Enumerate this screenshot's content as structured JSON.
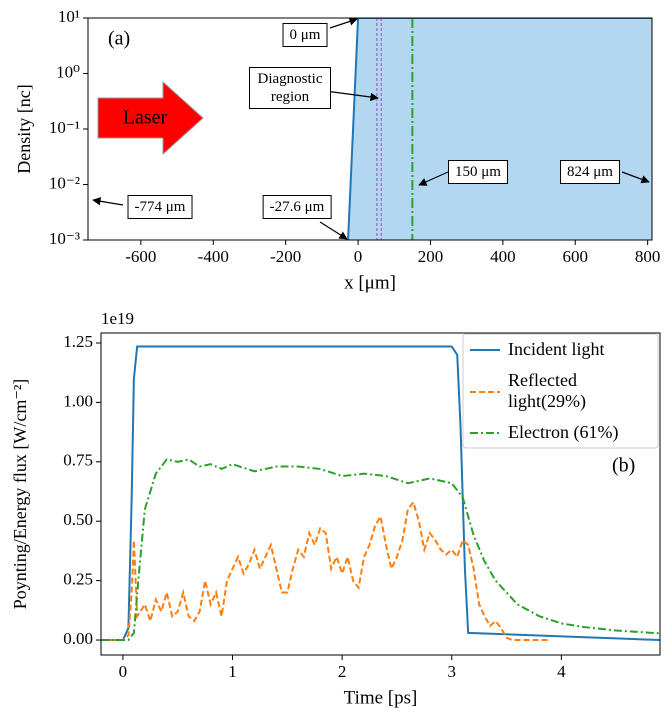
{
  "chart_data": [
    {
      "type": "area",
      "panel_label": "(a)",
      "xlabel": "x [μm]",
      "ylabel": "Density [nc]",
      "ylog": true,
      "x": [
        -27.6,
        0,
        824
      ],
      "values": [
        0.001,
        10,
        10
      ],
      "color": "#1f77b4",
      "fill_color": "#b3d7f0",
      "xlim": [
        -746,
        812
      ],
      "xticks": [
        -600,
        -400,
        -200,
        0,
        200,
        400,
        600,
        800
      ],
      "ylim": [
        0.001,
        10
      ],
      "yticks": [
        {
          "value": 0.001,
          "label": "10⁻³"
        },
        {
          "value": 0.01,
          "label": "10⁻²"
        },
        {
          "value": 0.1,
          "label": "10⁻¹"
        },
        {
          "value": 1,
          "label": "10⁰"
        },
        {
          "value": 10,
          "label": "10¹"
        }
      ],
      "vlines": [
        {
          "x": 52,
          "color": "#9467bd",
          "style": "dashed"
        },
        {
          "x": 64,
          "color": "#9467bd",
          "style": "dashed"
        },
        {
          "x": 150,
          "color": "#2ca02c",
          "style": "dashdot"
        }
      ],
      "laser_label": "Laser",
      "annotations": [
        "0 μm",
        "Diagnostic region",
        "150 μm",
        "824 μm",
        "-774 μm",
        "-27.6 μm"
      ]
    },
    {
      "type": "line",
      "panel_label": "(b)",
      "xlabel": "Time [ps]",
      "ylabel": "Poynting/Energy flux [W/cm⁻²]",
      "offset_text": "1e19",
      "xlim": [
        -0.2,
        4.9
      ],
      "xticks": [
        0,
        1,
        2,
        3,
        4
      ],
      "ylim": [
        -0.063,
        1.292
      ],
      "yticks": [
        {
          "value": 0,
          "label": "0.00"
        },
        {
          "value": 0.25,
          "label": "0.25"
        },
        {
          "value": 0.5,
          "label": "0.50"
        },
        {
          "value": 0.75,
          "label": "0.75"
        },
        {
          "value": 1,
          "label": "1.00"
        },
        {
          "value": 1.25,
          "label": "1.25"
        }
      ],
      "series": [
        {
          "name": "Incident light",
          "color": "#1f77b4",
          "style": "solid",
          "x": [
            -0.2,
            0,
            0.05,
            0.08,
            0.1,
            0.13,
            3.0,
            3.05,
            3.08,
            3.12,
            3.15,
            4.9
          ],
          "values": [
            0,
            0,
            0.05,
            0.6,
            1.1,
            1.235,
            1.235,
            1.2,
            0.9,
            0.3,
            0.03,
            0
          ]
        },
        {
          "name": "Reflected light(29%)",
          "color": "#ff7f0e",
          "style": "dashed",
          "x": [
            -0.2,
            0,
            0.05,
            0.08,
            0.1,
            0.13,
            0.2,
            0.25,
            0.3,
            0.35,
            0.4,
            0.45,
            0.5,
            0.55,
            0.6,
            0.65,
            0.7,
            0.75,
            0.8,
            0.85,
            0.9,
            0.95,
            1.0,
            1.05,
            1.1,
            1.15,
            1.2,
            1.25,
            1.3,
            1.35,
            1.4,
            1.45,
            1.5,
            1.55,
            1.6,
            1.65,
            1.7,
            1.75,
            1.8,
            1.85,
            1.9,
            1.95,
            2.0,
            2.05,
            2.1,
            2.15,
            2.2,
            2.25,
            2.3,
            2.35,
            2.4,
            2.45,
            2.5,
            2.55,
            2.6,
            2.65,
            2.7,
            2.75,
            2.8,
            2.85,
            2.9,
            2.95,
            3.0,
            3.05,
            3.1,
            3.15,
            3.2,
            3.25,
            3.3,
            3.35,
            3.4,
            3.45,
            3.5,
            3.55,
            3.9
          ],
          "values": [
            0,
            0,
            0.02,
            0.2,
            0.42,
            0.1,
            0.15,
            0.08,
            0.17,
            0.12,
            0.2,
            0.1,
            0.12,
            0.2,
            0.1,
            0.08,
            0.12,
            0.25,
            0.15,
            0.2,
            0.1,
            0.25,
            0.3,
            0.35,
            0.28,
            0.32,
            0.38,
            0.3,
            0.35,
            0.4,
            0.3,
            0.2,
            0.2,
            0.3,
            0.38,
            0.35,
            0.45,
            0.4,
            0.47,
            0.45,
            0.3,
            0.35,
            0.28,
            0.35,
            0.25,
            0.22,
            0.35,
            0.4,
            0.48,
            0.52,
            0.4,
            0.3,
            0.35,
            0.42,
            0.55,
            0.58,
            0.5,
            0.38,
            0.45,
            0.42,
            0.38,
            0.36,
            0.38,
            0.35,
            0.42,
            0.4,
            0.3,
            0.15,
            0.1,
            0.06,
            0.08,
            0.05,
            0.01,
            0,
            0
          ]
        },
        {
          "name": "Electron (61%)",
          "color": "#2ca02c",
          "style": "dashdot",
          "x": [
            -0.2,
            0.05,
            0.1,
            0.15,
            0.2,
            0.3,
            0.4,
            0.5,
            0.6,
            0.7,
            0.8,
            0.9,
            1.0,
            1.2,
            1.4,
            1.6,
            1.8,
            2.0,
            2.2,
            2.4,
            2.6,
            2.8,
            3.0,
            3.1,
            3.2,
            3.3,
            3.4,
            3.5,
            3.6,
            3.8,
            4.0,
            4.2,
            4.5,
            4.9
          ],
          "values": [
            0,
            0,
            0.03,
            0.3,
            0.55,
            0.7,
            0.76,
            0.75,
            0.76,
            0.73,
            0.74,
            0.72,
            0.74,
            0.71,
            0.73,
            0.73,
            0.72,
            0.69,
            0.7,
            0.69,
            0.66,
            0.68,
            0.66,
            0.6,
            0.44,
            0.33,
            0.25,
            0.2,
            0.15,
            0.1,
            0.07,
            0.055,
            0.04,
            0.028
          ]
        }
      ]
    }
  ]
}
